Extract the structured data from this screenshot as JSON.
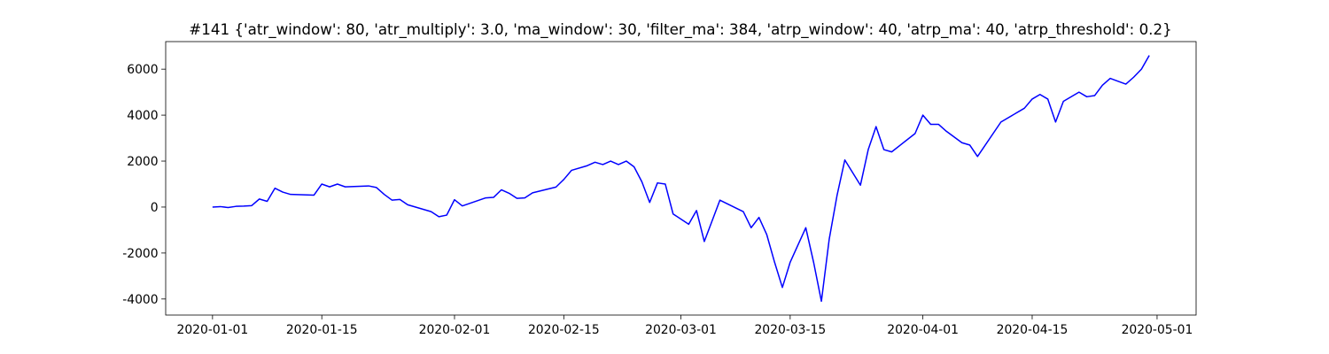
{
  "chart_data": {
    "type": "line",
    "title": "#141 {'atr_window': 80, 'atr_multiply': 3.0, 'ma_window': 30, 'filter_ma': 384, 'atrp_window': 40, 'atrp_ma': 40, 'atrp_threshold': 0.2}",
    "x": [
      "2020-01-01",
      "2020-01-02",
      "2020-01-03",
      "2020-01-04",
      "2020-01-05",
      "2020-01-06",
      "2020-01-07",
      "2020-01-08",
      "2020-01-09",
      "2020-01-10",
      "2020-01-11",
      "2020-01-14",
      "2020-01-15",
      "2020-01-16",
      "2020-01-17",
      "2020-01-18",
      "2020-01-21",
      "2020-01-22",
      "2020-01-23",
      "2020-01-24",
      "2020-01-25",
      "2020-01-26",
      "2020-01-29",
      "2020-01-30",
      "2020-01-31",
      "2020-02-01",
      "2020-02-02",
      "2020-02-05",
      "2020-02-06",
      "2020-02-07",
      "2020-02-08",
      "2020-02-09",
      "2020-02-10",
      "2020-02-11",
      "2020-02-14",
      "2020-02-15",
      "2020-02-16",
      "2020-02-18",
      "2020-02-19",
      "2020-02-20",
      "2020-02-21",
      "2020-02-22",
      "2020-02-23",
      "2020-02-24",
      "2020-02-25",
      "2020-02-26",
      "2020-02-27",
      "2020-02-28",
      "2020-02-29",
      "2020-03-02",
      "2020-03-03",
      "2020-03-04",
      "2020-03-06",
      "2020-03-09",
      "2020-03-10",
      "2020-03-11",
      "2020-03-12",
      "2020-03-13",
      "2020-03-14",
      "2020-03-15",
      "2020-03-17",
      "2020-03-18",
      "2020-03-19",
      "2020-03-20",
      "2020-03-21",
      "2020-03-22",
      "2020-03-24",
      "2020-03-25",
      "2020-03-26",
      "2020-03-27",
      "2020-03-28",
      "2020-03-31",
      "2020-04-01",
      "2020-04-02",
      "2020-04-03",
      "2020-04-04",
      "2020-04-06",
      "2020-04-07",
      "2020-04-08",
      "2020-04-11",
      "2020-04-14",
      "2020-04-15",
      "2020-04-16",
      "2020-04-17",
      "2020-04-18",
      "2020-04-19",
      "2020-04-21",
      "2020-04-22",
      "2020-04-23",
      "2020-04-24",
      "2020-04-25",
      "2020-04-27",
      "2020-04-28",
      "2020-04-29",
      "2020-04-30"
    ],
    "values": [
      0,
      20,
      -20,
      30,
      40,
      60,
      350,
      250,
      820,
      650,
      550,
      520,
      1000,
      880,
      1000,
      880,
      920,
      850,
      550,
      300,
      330,
      100,
      -200,
      -420,
      -350,
      320,
      50,
      400,
      420,
      750,
      600,
      380,
      400,
      620,
      870,
      1200,
      1600,
      1800,
      1950,
      1850,
      2000,
      1850,
      2000,
      1750,
      1100,
      200,
      1050,
      1000,
      -300,
      -750,
      -150,
      -1500,
      300,
      -200,
      -900,
      -450,
      -1200,
      -2400,
      -3500,
      -2400,
      -900,
      -2400,
      -4100,
      -1400,
      500,
      2050,
      950,
      2500,
      3500,
      2500,
      2400,
      3200,
      4000,
      3600,
      3600,
      3300,
      2800,
      2700,
      2200,
      3700,
      4300,
      4700,
      4900,
      4700,
      3700,
      4600,
      5000,
      4800,
      4850,
      5300,
      5600,
      5350,
      5650,
      6000,
      6600
    ],
    "color": "#0000ff",
    "xlim": [
      "2019-12-26",
      "2020-05-06"
    ],
    "xticks": [
      "2020-01-01",
      "2020-01-15",
      "2020-02-01",
      "2020-02-15",
      "2020-03-01",
      "2020-03-15",
      "2020-04-01",
      "2020-04-15",
      "2020-05-01"
    ],
    "ylim": [
      -4700,
      7200
    ],
    "yticks": [
      -4000,
      -2000,
      0,
      2000,
      4000,
      6000
    ],
    "grid": false
  }
}
